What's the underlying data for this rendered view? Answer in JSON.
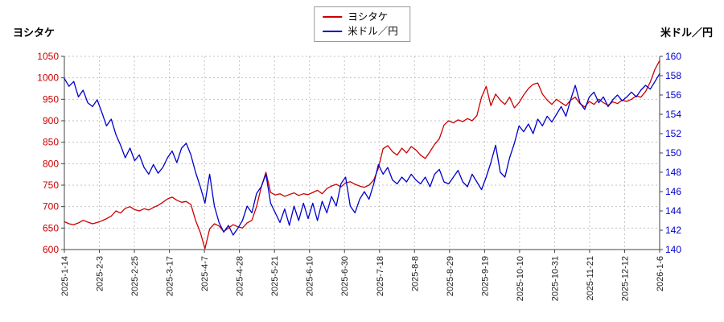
{
  "page": {
    "left_axis_title": "ヨシタケ",
    "right_axis_title": "米ドル／円"
  },
  "legend": {
    "items": [
      {
        "label": "ヨシタケ",
        "color": "#cc0000"
      },
      {
        "label": "米ドル／円",
        "color": "#0000cc"
      }
    ]
  },
  "chart_data": {
    "type": "line",
    "title": "",
    "grid": true,
    "legend_position": "top-center",
    "x_labels": [
      "2025-1-14",
      "2025-2-3",
      "2025-2-25",
      "2025-3-17",
      "2025-4-7",
      "2025-4-28",
      "2025-5-21",
      "2025-6-10",
      "2025-6-30",
      "2025-7-18",
      "2025-8-8",
      "2025-8-29",
      "2025-9-19",
      "2025-10-10",
      "2025-10-31",
      "2025-11-21",
      "2025-12-12",
      "2026-1-6"
    ],
    "left_axis": {
      "title": "ヨシタケ",
      "min": 600,
      "max": 1050,
      "step": 50,
      "color": "#cc0000"
    },
    "right_axis": {
      "title": "米ドル／円",
      "min": 140,
      "max": 160,
      "step": 2,
      "color": "#0000cc"
    },
    "series": [
      {
        "name": "ヨシタケ",
        "axis": "left",
        "color": "#cc0000",
        "values": [
          665,
          660,
          658,
          662,
          668,
          664,
          660,
          663,
          667,
          672,
          678,
          690,
          685,
          696,
          700,
          693,
          690,
          695,
          692,
          698,
          703,
          710,
          718,
          722,
          715,
          710,
          712,
          705,
          668,
          640,
          602,
          648,
          660,
          655,
          642,
          650,
          658,
          653,
          650,
          662,
          668,
          700,
          745,
          780,
          733,
          727,
          730,
          724,
          728,
          732,
          726,
          730,
          728,
          733,
          738,
          730,
          742,
          748,
          752,
          746,
          755,
          758,
          752,
          748,
          745,
          750,
          762,
          790,
          835,
          842,
          828,
          820,
          836,
          825,
          840,
          832,
          820,
          812,
          828,
          845,
          858,
          890,
          900,
          895,
          902,
          898,
          905,
          900,
          912,
          955,
          980,
          935,
          962,
          948,
          938,
          955,
          930,
          942,
          960,
          975,
          985,
          988,
          962,
          948,
          938,
          950,
          942,
          935,
          948,
          955,
          940,
          932,
          945,
          938,
          950,
          942,
          936,
          944,
          940,
          948,
          945,
          950,
          958,
          955,
          968,
          990,
          1020,
          1040
        ]
      },
      {
        "name": "米ドル／円",
        "axis": "right",
        "color": "#0000cc",
        "values": [
          157.7,
          156.9,
          157.4,
          155.8,
          156.5,
          155.2,
          154.8,
          155.5,
          154.2,
          152.8,
          153.5,
          151.9,
          150.8,
          149.5,
          150.5,
          149.2,
          149.8,
          148.5,
          147.8,
          148.8,
          147.9,
          148.5,
          149.5,
          150.2,
          149.0,
          150.5,
          151.0,
          149.8,
          148.0,
          146.5,
          144.8,
          147.8,
          144.5,
          142.8,
          141.8,
          142.5,
          141.5,
          142.2,
          143.0,
          144.5,
          143.8,
          145.8,
          146.5,
          147.8,
          144.8,
          143.8,
          142.8,
          144.2,
          142.5,
          144.5,
          143.0,
          144.8,
          143.2,
          144.8,
          143.0,
          145.0,
          143.8,
          145.5,
          144.5,
          146.8,
          147.5,
          144.5,
          143.8,
          145.2,
          146.0,
          145.2,
          146.8,
          148.8,
          147.8,
          148.5,
          147.2,
          146.8,
          147.5,
          147.0,
          147.8,
          147.2,
          146.8,
          147.5,
          146.5,
          147.8,
          148.3,
          147.0,
          146.8,
          147.5,
          148.2,
          147.0,
          146.5,
          147.8,
          147.0,
          146.2,
          147.5,
          149.0,
          150.8,
          148.0,
          147.5,
          149.5,
          151.0,
          152.8,
          152.2,
          153.0,
          152.0,
          153.5,
          152.8,
          153.8,
          153.2,
          154.0,
          154.8,
          153.8,
          155.5,
          157.0,
          155.2,
          154.5,
          155.8,
          156.3,
          155.2,
          155.8,
          154.8,
          155.5,
          156.0,
          155.4,
          155.8,
          156.3,
          155.8,
          156.5,
          157.0,
          156.6,
          157.4,
          158.2
        ]
      }
    ]
  }
}
